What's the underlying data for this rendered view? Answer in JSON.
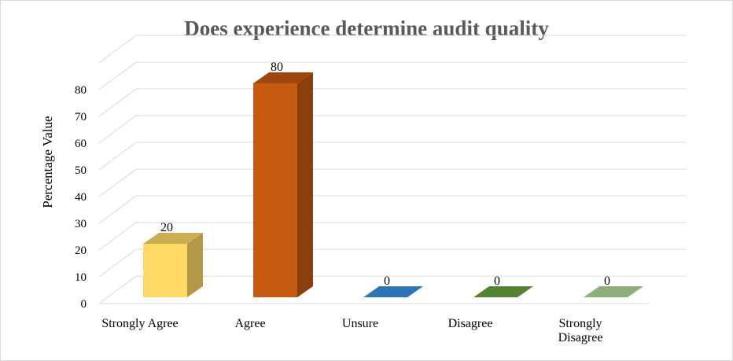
{
  "chart_data": {
    "type": "bar",
    "title": "Does experience determine audit quality",
    "ylabel": "Percentage Value",
    "xlabel": "",
    "ylim": [
      0,
      80
    ],
    "yticks": [
      0,
      10,
      20,
      30,
      40,
      50,
      60,
      70,
      80
    ],
    "grid": true,
    "categories": [
      [
        "Strongly Agree"
      ],
      [
        "Agree"
      ],
      [
        "Unsure"
      ],
      [
        "Disagree"
      ],
      [
        "Strongly",
        "Disagree"
      ]
    ],
    "values": [
      20,
      80,
      0,
      0,
      0
    ],
    "data_labels": [
      "20",
      "80",
      "0",
      "0",
      "0"
    ],
    "colors": [
      "#FFD966",
      "#C55A11",
      "#2E75B6",
      "#548235",
      "#8FAF7A"
    ]
  }
}
